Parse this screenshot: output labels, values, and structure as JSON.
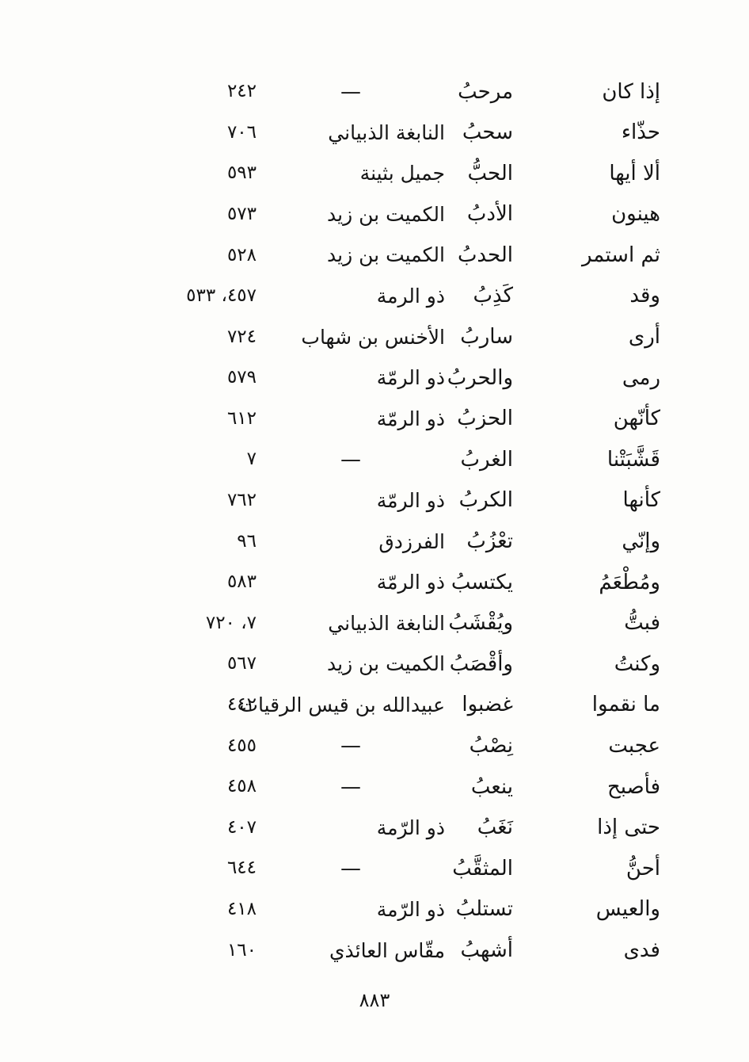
{
  "page": {
    "footer_page_number": "٨٨٣"
  },
  "index_table": {
    "description": "rhyme-index-of-verses",
    "rows": [
      {
        "opening": "إذا كان",
        "rhyme": "مرحبُ",
        "poet": "—",
        "pages": "٢٤٢"
      },
      {
        "opening": "حذّاء",
        "rhyme": "سحبُ",
        "poet": "النابغة الذبياني",
        "pages": "٧٠٦"
      },
      {
        "opening": "ألا أيها",
        "rhyme": "الحبُّ",
        "poet": "جميل بثينة",
        "pages": "٥٩٣"
      },
      {
        "opening": "هينون",
        "rhyme": "الأدبُ",
        "poet": "الكميت بن زيد",
        "pages": "٥٧٣"
      },
      {
        "opening": "ثم استمر",
        "rhyme": "الحدبُ",
        "poet": "الكميت بن زيد",
        "pages": "٥٢٨"
      },
      {
        "opening": "وقد",
        "rhyme": "كَذِبُ",
        "poet": "ذو الرمة",
        "pages": "٤٥٧، ٥٣٣"
      },
      {
        "opening": "أرى",
        "rhyme": "ساربُ",
        "poet": "الأخنس بن شهاب",
        "pages": "٧٢٤"
      },
      {
        "opening": "رمى",
        "rhyme": "والحربُ",
        "poet": "ذو الرمّة",
        "pages": "٥٧٩"
      },
      {
        "opening": "كأنّهن",
        "rhyme": "الحزبُ",
        "poet": "ذو الرمّة",
        "pages": "٦١٢"
      },
      {
        "opening": "قَشَّبَتْنا",
        "rhyme": "الغربُ",
        "poet": "—",
        "pages": "٧"
      },
      {
        "opening": "كأنها",
        "rhyme": "الكربُ",
        "poet": "ذو الرمّة",
        "pages": "٧٦٢"
      },
      {
        "opening": "وإنّي",
        "rhyme": "تعْزُبُ",
        "poet": "الفرزدق",
        "pages": "٩٦"
      },
      {
        "opening": "ومُطْعَمُ",
        "rhyme": "يكتسبُ",
        "poet": "ذو الرمّة",
        "pages": "٥٨٣"
      },
      {
        "opening": "فبتُّ",
        "rhyme": "ويُقْشَبُ",
        "poet": "النابغة الذبياني",
        "pages": "٧، ٧٢٠"
      },
      {
        "opening": "وكنتُ",
        "rhyme": "وأقْصَبُ",
        "poet": "الكميت بن زيد",
        "pages": "٥٦٧"
      },
      {
        "opening": "ما نقموا",
        "rhyme": "غضبوا",
        "poet": "عبيدالله بن قيس الرقيات",
        "pages": "٤٤٢"
      },
      {
        "opening": "عجبت",
        "rhyme": "نِصْبُ",
        "poet": "—",
        "pages": "٤٥٥"
      },
      {
        "opening": "فأصبح",
        "rhyme": "ينعبُ",
        "poet": "—",
        "pages": "٤٥٨"
      },
      {
        "opening": "حتى إذا",
        "rhyme": "نَغَبُ",
        "poet": "ذو الرّمة",
        "pages": "٤٠٧"
      },
      {
        "opening": "أحنُّ",
        "rhyme": "المثقَّبُ",
        "poet": "—",
        "pages": "٦٤٤"
      },
      {
        "opening": "والعيس",
        "rhyme": "تستلبُ",
        "poet": "ذو الرّمة",
        "pages": "٤١٨"
      },
      {
        "opening": "فدى",
        "rhyme": "أشهبُ",
        "poet": "مقّاس العائذي",
        "pages": "١٦٠"
      }
    ]
  }
}
